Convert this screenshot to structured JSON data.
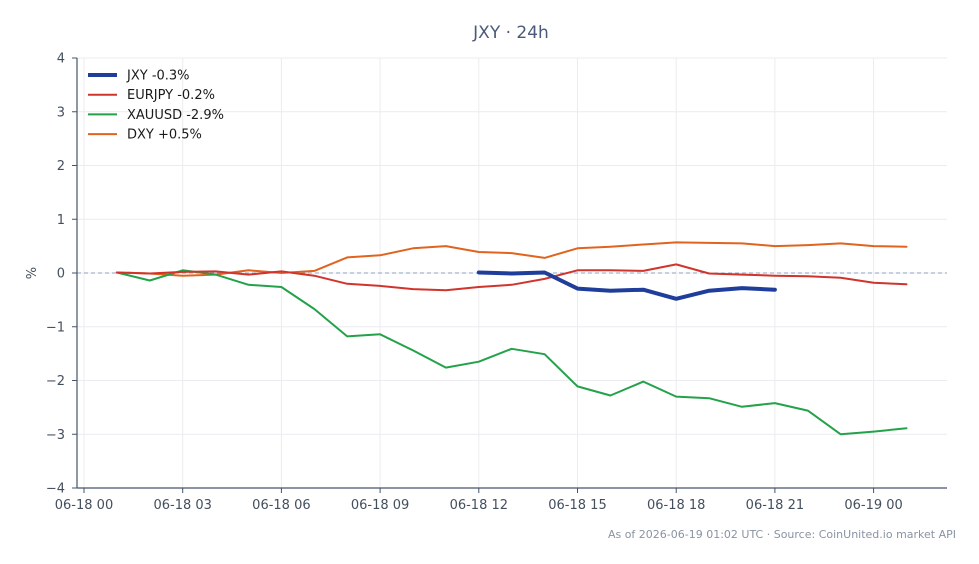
{
  "chart_data": {
    "type": "line",
    "title": "JXY · 24h",
    "xlabel": "",
    "ylabel": "%",
    "x_unit": "hours since 06-18 00:00",
    "xlim": [
      -0.1,
      26.2
    ],
    "ylim": [
      -4,
      4
    ],
    "yticks": [
      4,
      3,
      2,
      1,
      0,
      -1,
      -2,
      -3,
      -4
    ],
    "ytick_labels": [
      "4",
      "3",
      "2",
      "1",
      "0",
      "−1",
      "−2",
      "−3",
      "−4"
    ],
    "xticks": [
      0,
      3,
      6,
      9,
      12,
      15,
      18,
      21,
      24
    ],
    "xtick_labels": [
      "06-18 00",
      "06-18 03",
      "06-18 06",
      "06-18 09",
      "06-18 12",
      "06-18 15",
      "06-18 18",
      "06-18 21",
      "06-19 00"
    ],
    "grid": true,
    "legend_position": "top-left",
    "baseline": 0,
    "series": [
      {
        "name": "JXY -0.3%",
        "color": "#1f3d9b",
        "width": 4,
        "x": [
          12,
          13,
          14,
          15,
          16,
          17,
          18,
          19,
          20,
          21
        ],
        "y": [
          0.01,
          -0.01,
          0.01,
          -0.29,
          -0.33,
          -0.31,
          -0.48,
          -0.33,
          -0.28,
          -0.31
        ]
      },
      {
        "name": "EURJPY -0.2%",
        "color": "#d1342b",
        "width": 2,
        "x": [
          1,
          2,
          3,
          4,
          5,
          6,
          7,
          8,
          9,
          10,
          11,
          12,
          13,
          14,
          15,
          16,
          17,
          18,
          19,
          20,
          21,
          22,
          23,
          24,
          25
        ],
        "y": [
          0.01,
          -0.01,
          0.02,
          0.03,
          -0.03,
          0.03,
          -0.05,
          -0.2,
          -0.24,
          -0.3,
          -0.32,
          -0.26,
          -0.22,
          -0.11,
          0.05,
          0.05,
          0.04,
          0.16,
          -0.01,
          -0.03,
          -0.05,
          -0.06,
          -0.09,
          -0.18,
          -0.21
        ]
      },
      {
        "name": "XAUUSD -2.9%",
        "color": "#23a24a",
        "width": 2,
        "x": [
          1,
          2,
          3,
          4,
          5,
          6,
          7,
          8,
          9,
          10,
          11,
          12,
          13,
          14,
          15,
          16,
          17,
          18,
          19,
          20,
          21,
          22,
          23,
          24,
          25
        ],
        "y": [
          0.01,
          -0.14,
          0.05,
          -0.03,
          -0.22,
          -0.26,
          -0.67,
          -1.18,
          -1.14,
          -1.44,
          -1.76,
          -1.65,
          -1.41,
          -1.51,
          -2.11,
          -2.28,
          -2.02,
          -2.3,
          -2.33,
          -2.49,
          -2.42,
          -2.56,
          -3.0,
          -2.95,
          -2.89
        ]
      },
      {
        "name": "DXY +0.5%",
        "color": "#e0641e",
        "width": 2,
        "x": [
          1,
          2,
          3,
          4,
          5,
          6,
          7,
          8,
          9,
          10,
          11,
          12,
          13,
          14,
          15,
          16,
          17,
          18,
          19,
          20,
          21,
          22,
          23,
          24,
          25
        ],
        "y": [
          0.01,
          -0.01,
          -0.05,
          -0.03,
          0.05,
          0.0,
          0.04,
          0.29,
          0.33,
          0.46,
          0.5,
          0.39,
          0.37,
          0.28,
          0.46,
          0.49,
          0.53,
          0.57,
          0.56,
          0.55,
          0.5,
          0.52,
          0.55,
          0.5,
          0.49
        ]
      }
    ]
  },
  "footer": {
    "source_text": "As of 2026-06-19 01:02 UTC · Source: CoinUnited.io market API"
  }
}
